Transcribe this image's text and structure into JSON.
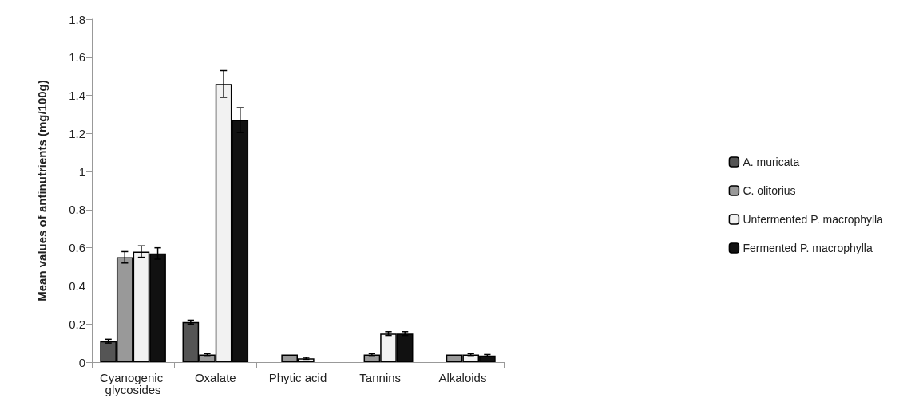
{
  "chart_data": {
    "type": "bar",
    "ylabel": "Mean values of antinutrients (mg/100g)",
    "categories": [
      "Cyanogenic glycosides",
      "Oxalate",
      "Phytic acid",
      "Tannins",
      "Alkaloids"
    ],
    "series": [
      {
        "name": "A. muricata",
        "color": "#555555",
        "values": [
          0.11,
          0.21,
          null,
          null,
          null
        ],
        "errors": [
          0.01,
          0.01,
          null,
          null,
          null
        ]
      },
      {
        "name": "C. olitorius",
        "color": "#999999",
        "values": [
          0.55,
          0.04,
          0.04,
          0.04,
          0.04
        ],
        "errors": [
          0.03,
          0.005,
          null,
          0.005,
          null
        ]
      },
      {
        "name": "Unfermented P. macrophylla",
        "color": "#f2f2f2",
        "values": [
          0.58,
          1.46,
          0.02,
          0.15,
          0.04
        ],
        "errors": [
          0.03,
          0.07,
          0.005,
          0.01,
          0.005
        ]
      },
      {
        "name": "Fermented P. macrophylla",
        "color": "#111111",
        "values": [
          0.57,
          1.27,
          null,
          0.15,
          0.035
        ],
        "errors": [
          0.03,
          0.065,
          null,
          0.01,
          0.005
        ]
      }
    ],
    "ylim": [
      0,
      1.8
    ],
    "yticks": [
      0,
      0.2,
      0.4,
      0.6,
      0.8,
      1,
      1.2,
      1.4,
      1.6,
      1.8
    ],
    "grid": false,
    "legend": "right"
  }
}
